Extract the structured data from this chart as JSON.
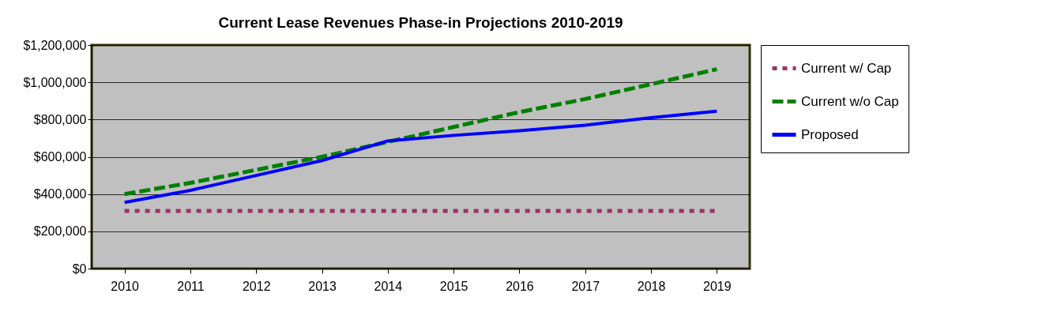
{
  "chart_data": {
    "type": "line",
    "title": "Current Lease Revenues Phase-in Projections 2010-2019",
    "categories": [
      "2010",
      "2011",
      "2012",
      "2013",
      "2014",
      "2015",
      "2016",
      "2017",
      "2018",
      "2019"
    ],
    "series": [
      {
        "name": "Current w/ Cap",
        "color": "#993366",
        "line_style": "dotted",
        "values": [
          310000,
          310000,
          310000,
          310000,
          310000,
          310000,
          310000,
          310000,
          310000,
          310000
        ]
      },
      {
        "name": "Current w/o Cap",
        "color": "#008000",
        "line_style": "dashed",
        "values": [
          400000,
          460000,
          530000,
          600000,
          680000,
          760000,
          840000,
          910000,
          990000,
          1070000
        ]
      },
      {
        "name": "Proposed",
        "color": "#0000ff",
        "line_style": "solid",
        "values": [
          355000,
          420000,
          500000,
          580000,
          685000,
          715000,
          740000,
          770000,
          810000,
          845000
        ]
      }
    ],
    "ylim": [
      0,
      1200000
    ],
    "yticks": [
      {
        "value": 0,
        "label": "$0"
      },
      {
        "value": 200000,
        "label": "$200,000"
      },
      {
        "value": 400000,
        "label": "$400,000"
      },
      {
        "value": 600000,
        "label": "$600,000"
      },
      {
        "value": 800000,
        "label": "$800,000"
      },
      {
        "value": 1000000,
        "label": "$1,000,000"
      },
      {
        "value": 1200000,
        "label": "$1,200,000"
      }
    ],
    "grid": "y",
    "legend": "right",
    "marker": "none"
  }
}
